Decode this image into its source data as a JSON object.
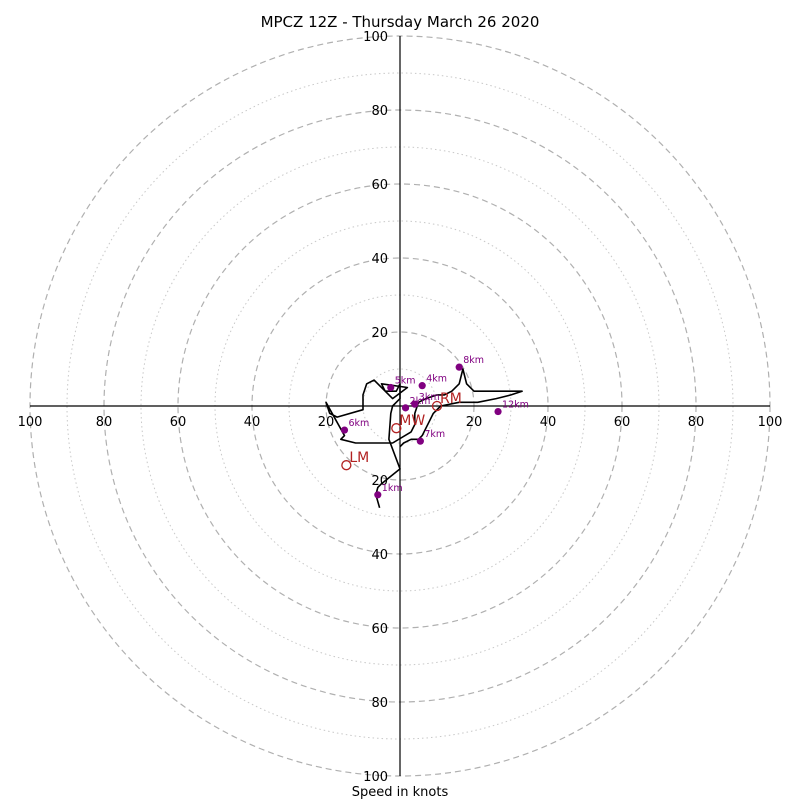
{
  "chart_data": {
    "type": "scatter",
    "title": "MPCZ 12Z - Thursday March 26 2020",
    "xlabel": "Speed in knots",
    "ylabel": "",
    "xlim": [
      -100,
      100
    ],
    "ylim": [
      -100,
      100
    ],
    "x_ticks": [
      "100",
      "80",
      "60",
      "40",
      "20",
      "20",
      "40",
      "60",
      "80",
      "100"
    ],
    "y_ticks": [
      "100",
      "80",
      "60",
      "40",
      "20",
      "20",
      "40",
      "60",
      "80",
      "100"
    ],
    "rings_major": [
      20,
      40,
      60,
      80,
      100
    ],
    "rings_minor": [
      10,
      30,
      50,
      70,
      90
    ],
    "colors": {
      "hodograph": "#000000",
      "height_markers": "#800080",
      "storm_motion": "#b22222",
      "grid_major": "#b0b0b0",
      "grid_minor": "#c8c8c8"
    },
    "hodograph_trace": [
      [
        -5.5,
        -27.5
      ],
      [
        -6.5,
        -24
      ],
      [
        -6,
        -22
      ],
      [
        -5,
        -21
      ],
      [
        0,
        -17
      ],
      [
        -3,
        -9
      ],
      [
        -2.5,
        -2
      ],
      [
        -2,
        0
      ],
      [
        -1,
        1
      ],
      [
        0,
        2
      ],
      [
        0,
        4
      ],
      [
        0,
        6
      ],
      [
        -1,
        4
      ],
      [
        -4,
        4
      ],
      [
        -5,
        6
      ],
      [
        2,
        5
      ],
      [
        -2,
        2
      ],
      [
        -7,
        7
      ],
      [
        -9,
        6
      ],
      [
        -10,
        3
      ],
      [
        -10,
        -1
      ],
      [
        -17,
        -3
      ],
      [
        -19,
        -2
      ],
      [
        -20,
        1
      ],
      [
        -15,
        -8
      ],
      [
        -16,
        -9
      ],
      [
        -12,
        -10
      ],
      [
        -2,
        -10
      ],
      [
        3,
        -7
      ],
      [
        4,
        -5
      ],
      [
        4,
        -2
      ],
      [
        5,
        1
      ],
      [
        7,
        2
      ],
      [
        10,
        3
      ],
      [
        12,
        3
      ],
      [
        14,
        4
      ],
      [
        16,
        6
      ],
      [
        17,
        10
      ],
      [
        18,
        6
      ],
      [
        20,
        4
      ],
      [
        23,
        4
      ],
      [
        28,
        4
      ],
      [
        30,
        4
      ],
      [
        33,
        4
      ],
      [
        30,
        3
      ],
      [
        26,
        2
      ],
      [
        21,
        1
      ],
      [
        16,
        1
      ],
      [
        11,
        0
      ],
      [
        9,
        -2
      ],
      [
        8,
        -4
      ],
      [
        7,
        -6
      ],
      [
        6,
        -8
      ],
      [
        5,
        -9
      ],
      [
        3,
        -9
      ],
      [
        1,
        -10
      ],
      [
        0,
        -11
      ]
    ],
    "height_markers": [
      {
        "label": "1km",
        "x": -6,
        "y": -24
      },
      {
        "label": "3km",
        "x": 4,
        "y": 0.5
      },
      {
        "label": "4km",
        "x": 6,
        "y": 5.5
      },
      {
        "label": "5km",
        "x": -2.5,
        "y": 5
      },
      {
        "label": "6km",
        "x": -15,
        "y": -6.5
      },
      {
        "label": "7km",
        "x": 5.5,
        "y": -9.5
      },
      {
        "label": "8km",
        "x": 16,
        "y": 10.5
      },
      {
        "label": "12km",
        "x": 26.5,
        "y": -1.5
      },
      {
        "label": "2km",
        "x": 1.5,
        "y": -0.5
      }
    ],
    "storm_motion": [
      {
        "label": "RM",
        "x": 10,
        "y": 0
      },
      {
        "label": "MW",
        "x": -1,
        "y": -6
      },
      {
        "label": "LM",
        "x": -14.5,
        "y": -16
      }
    ]
  }
}
